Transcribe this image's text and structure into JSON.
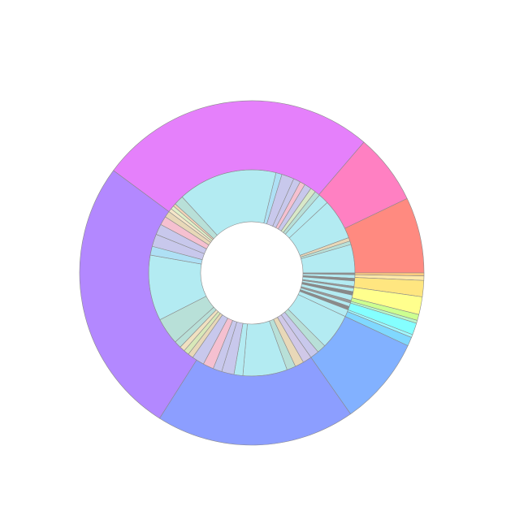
{
  "chart_data": {
    "type": "sunburst",
    "rings": [
      {
        "values": [
          2,
          2,
          1.5,
          5.5,
          56.1,
          3.4,
          7,
          4,
          3,
          4,
          3,
          3,
          6,
          23,
          2,
          2,
          16,
          1,
          2,
          1.5,
          3,
          1,
          2,
          2,
          3,
          1.5,
          2,
          2,
          4,
          20,
          5,
          5,
          5,
          5,
          5,
          25,
          5,
          7,
          5,
          6,
          7,
          3,
          3,
          3,
          4,
          15,
          37,
          5,
          7,
          6,
          5,
          3.5
        ],
        "colors": [
          "#f5e6c8",
          "#e0f0c8",
          "#f5d5b8",
          "#b8e0d8",
          "#b3ebf2",
          "#aee0f5",
          "#c8c8ec",
          "#c8c8ec",
          "#f5c0d0",
          "#c8c8ec",
          "#d8e8c8",
          "#b8e0d8",
          "#b3ebf2",
          "#b3ebf2",
          "#e8d8b8",
          "#b8e0d8",
          "#b3ebf2",
          "#909090",
          "#b3ebf2",
          "#8a8a8a",
          "#b3ebf2",
          "#999999",
          "#b3ebf2",
          "#888888",
          "#b3ebf2",
          "#999999",
          "#b3ebf2",
          "#8a8a8a",
          "#b3ebf2",
          "#b3ebf2",
          "#b8e0d8",
          "#c8c8ec",
          "#d0c8e8",
          "#e8d8b8",
          "#b8e0d8",
          "#b3ebf2",
          "#b3ebf2",
          "#c8c8ec",
          "#c8c8ec",
          "#f5c0d0",
          "#c8c8ec",
          "#e8d8b8",
          "#d8e8b8",
          "#f0e0c0",
          "#b8e0d8",
          "#b8e0d8",
          "#b3ebf2",
          "#aee0f5",
          "#c8c8ec",
          "#c8c8ec",
          "#f5c0d0",
          "#e8d8b8"
        ]
      },
      {
        "values": [
          94.1,
          23.8,
          25.6,
          1,
          1.5,
          5.5,
          6,
          2,
          1,
          4,
          1,
          3,
          30,
          67.4,
          94.1
        ],
        "colors": [
          "#e580fb",
          "#ff80c2",
          "#ff8a80",
          "#ffcc80",
          "#ffe9a8",
          "#ffe680",
          "#ffff8d",
          "#ccff90",
          "#b9f6ca",
          "#84ffff",
          "#a0f8ff",
          "#80d8ff",
          "#82b1ff",
          "#8c9eff",
          "#b388ff"
        ]
      }
    ]
  }
}
